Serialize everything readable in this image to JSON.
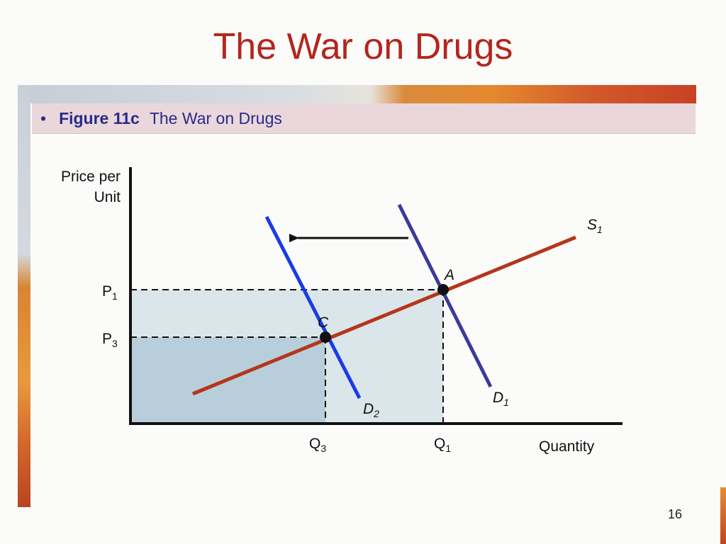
{
  "slide": {
    "title": "The War on Drugs",
    "bullet": "•",
    "figure_number": "Figure 11c",
    "figure_caption": "The War on Drugs",
    "page_number": "16"
  },
  "diagram": {
    "y_axis_label_line1": "Price per",
    "y_axis_label_line2": "Unit",
    "x_axis_label": "Quantity",
    "price_p1": {
      "base": "P",
      "sub": "1"
    },
    "price_p3": {
      "base": "P",
      "sub": "3"
    },
    "qty_q1": {
      "base": "Q",
      "sub": "1"
    },
    "qty_q3": {
      "base": "Q",
      "sub": "3"
    },
    "supply_label": {
      "base": "S",
      "sub": "1"
    },
    "demand1_label": {
      "base": "D",
      "sub": "1"
    },
    "demand2_label": {
      "base": "D",
      "sub": "2"
    },
    "point_a": "A",
    "point_c": "C",
    "colors": {
      "supply": "#b5361c",
      "demand1": "#3b3b99",
      "demand2": "#1a3be8",
      "shade_outer": "#dbe6ea",
      "shade_inner": "#b8cfdb",
      "title": "#b3261e"
    }
  }
}
